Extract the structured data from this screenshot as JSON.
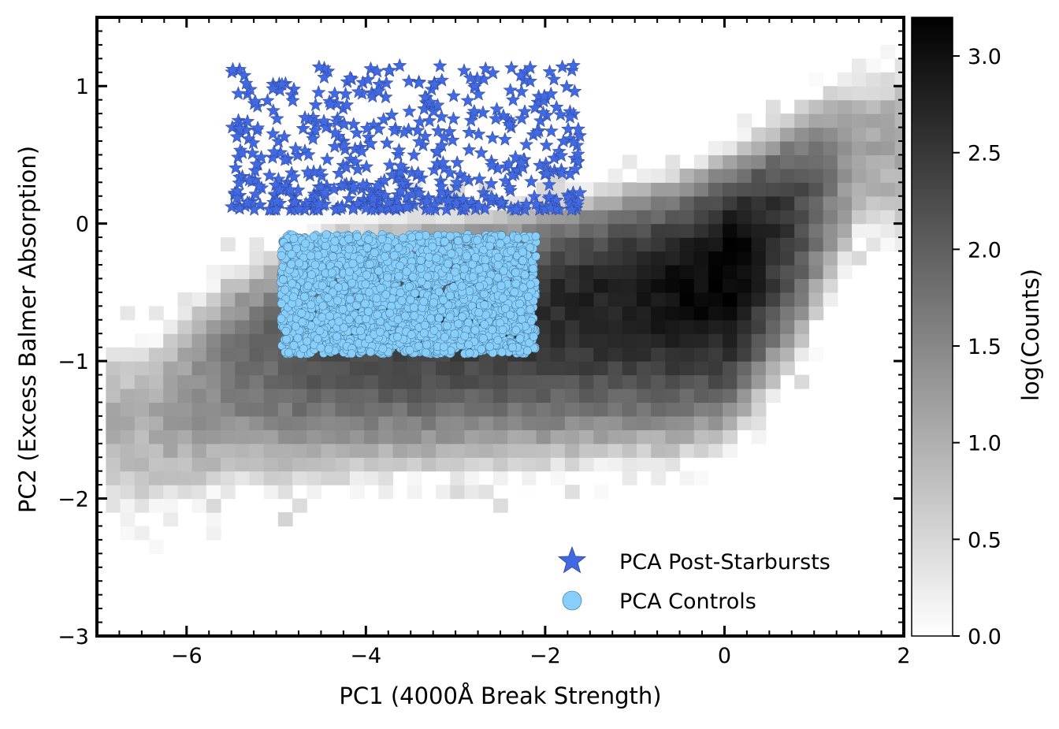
{
  "chart_data": {
    "type": "heatmap",
    "xlabel": "PC1 (4000Å Break Strength)",
    "ylabel": "PC2 (Excess Balmer Absorption)",
    "xlim": [
      -7,
      2
    ],
    "ylim": [
      -3,
      1.5
    ],
    "xticks": [
      -6,
      -4,
      -2,
      0,
      2
    ],
    "yticks": [
      -3,
      -2,
      -1,
      0,
      1
    ],
    "xtick_labels": [
      "−6",
      "−4",
      "−2",
      "0",
      "2"
    ],
    "ytick_labels": [
      "−3",
      "−2",
      "−1",
      "0",
      "1"
    ],
    "grid": false,
    "legend_position": "lower-right",
    "colorbar": {
      "label": "log(Counts)",
      "range": [
        0,
        3.2
      ],
      "ticks": [
        0,
        0.5,
        1,
        1.5,
        2,
        2.5,
        3
      ],
      "tick_labels": [
        "0.0",
        "0.5",
        "1.0",
        "1.5",
        "2.0",
        "2.5",
        "3.0"
      ],
      "colormap": "Greys"
    },
    "histogram": {
      "description_of_density": "2D log-count histogram of PC1 vs PC2",
      "bin_size_x": 0.16,
      "bin_size_y": 0.1,
      "ridge": [
        {
          "x": -6.4,
          "y": -1.4,
          "peak": 0.9
        },
        {
          "x": -5.5,
          "y": -1.0,
          "peak": 1.6
        },
        {
          "x": -4.5,
          "y": -0.8,
          "peak": 2.2
        },
        {
          "x": -3.5,
          "y": -0.7,
          "peak": 2.4
        },
        {
          "x": -2.5,
          "y": -0.65,
          "peak": 2.5
        },
        {
          "x": -1.5,
          "y": -0.55,
          "peak": 2.7
        },
        {
          "x": -0.5,
          "y": -0.45,
          "peak": 3.0
        },
        {
          "x": 0.1,
          "y": -0.3,
          "peak": 3.2
        },
        {
          "x": 0.8,
          "y": 0.1,
          "peak": 2.3
        },
        {
          "x": 1.5,
          "y": 0.6,
          "peak": 1.0
        }
      ]
    },
    "series": [
      {
        "name": "PCA Post-Starbursts",
        "marker": "star",
        "color": "#4169e1",
        "x_range": [
          -5.8,
          -1.6
        ],
        "y_range": [
          0.1,
          1.15
        ],
        "count": 520
      },
      {
        "name": "PCA Controls",
        "marker": "circle",
        "color": "#87cefa",
        "x_range": [
          -4.95,
          -2.1
        ],
        "y_range": [
          -0.95,
          -0.08
        ],
        "count": 2600
      }
    ]
  }
}
